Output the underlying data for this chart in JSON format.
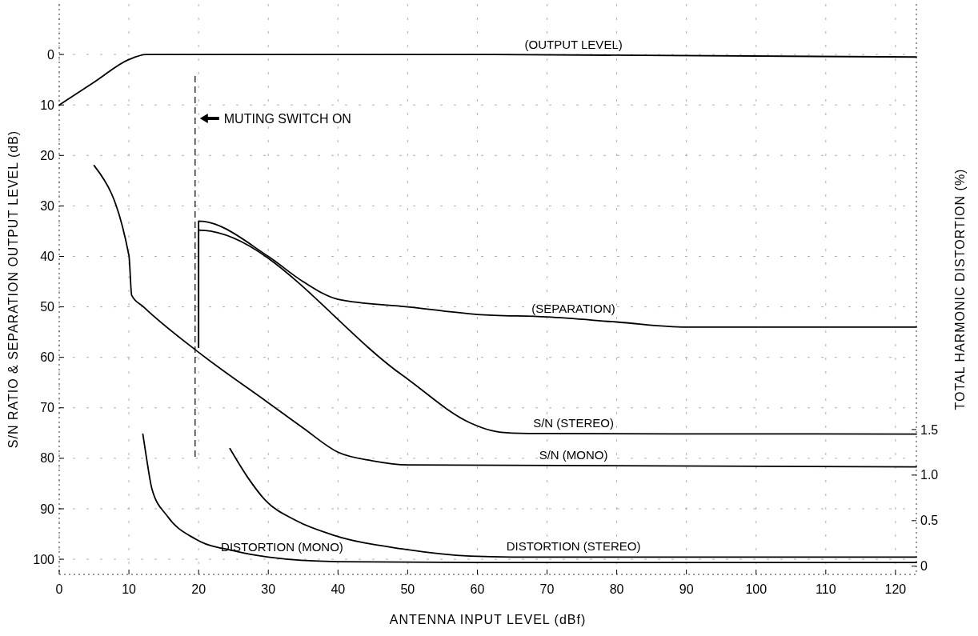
{
  "chart_data": {
    "type": "line",
    "xlabel": "ANTENNA INPUT LEVEL (dBf)",
    "ylabel": "S/N RATIO & SEPARATION OUTPUT LEVEL (dB)",
    "y2label": "TOTAL HARMONIC DISTORTION (%)",
    "xlim": [
      0,
      123
    ],
    "xticks": [
      0,
      10,
      20,
      30,
      40,
      50,
      60,
      70,
      80,
      90,
      100,
      110,
      120
    ],
    "ylim": [
      103,
      -10
    ],
    "yticks": [
      0,
      10,
      20,
      30,
      40,
      50,
      60,
      70,
      80,
      90,
      100
    ],
    "y2lim": [
      -0.09,
      6.17
    ],
    "y2ticks": [
      0,
      {
        "value": 0.5,
        "label": "0.5"
      },
      {
        "value": 1,
        "label": "1.0"
      },
      {
        "value": 1.5,
        "label": "1.5"
      }
    ],
    "grid": true,
    "marker": "none",
    "line_style": "solid",
    "series": [
      {
        "name": "(OUTPUT LEVEL)",
        "color": "#000000",
        "x": [
          0,
          5,
          10,
          12.5,
          20,
          60,
          123
        ],
        "values": [
          10,
          5.5,
          1,
          0,
          0,
          0,
          0.5
        ]
      },
      {
        "name": "(SEPARATION)",
        "color": "#000000",
        "x": [
          20,
          20,
          30,
          35,
          40,
          50,
          60,
          70,
          80,
          90,
          123
        ],
        "values": [
          58,
          33,
          40,
          45,
          48.5,
          50,
          51.5,
          52,
          53,
          54,
          54
        ]
      },
      {
        "name": "S/N (STEREO)",
        "color": "#000000",
        "x": [
          20,
          20,
          49.4,
          59,
          62,
          65,
          70,
          123
        ],
        "values": [
          58,
          34.8,
          63.7,
          73,
          74.5,
          75,
          75.1,
          75.2
        ]
      },
      {
        "name": "S/N (MONO)",
        "color": "#000000",
        "x": [
          5,
          10,
          10.4,
          12.1,
          20,
          30,
          35,
          40,
          45,
          50,
          123
        ],
        "values": [
          22,
          39.8,
          47.7,
          50,
          59,
          69,
          74,
          78.8,
          80.5,
          81.3,
          81.7
        ]
      },
      {
        "name": "DISTORTION (STEREO)",
        "color": "#000000",
        "axis": "y2",
        "x": [
          24.5,
          27,
          29.5,
          34,
          39.4,
          49.2,
          59,
          65,
          123
        ],
        "values": [
          1.29,
          0.98,
          0.73,
          0.5,
          0.34,
          0.19,
          0.11,
          0.1,
          0.1
        ]
      },
      {
        "name": "DISTORTION (MONO)",
        "color": "#000000",
        "axis": "y2",
        "x": [
          12,
          12.5,
          13.3,
          15.5,
          19.5,
          25,
          30,
          40,
          60,
          123
        ],
        "values": [
          1.45,
          1.2,
          0.85,
          0.55,
          0.3,
          0.17,
          0.1,
          0.05,
          0.04,
          0.04
        ]
      }
    ],
    "ref_lines": [
      {
        "axis": "x",
        "value": 19.5,
        "label": "MUTING SWITCH ON",
        "line_style": "dashed"
      }
    ]
  }
}
